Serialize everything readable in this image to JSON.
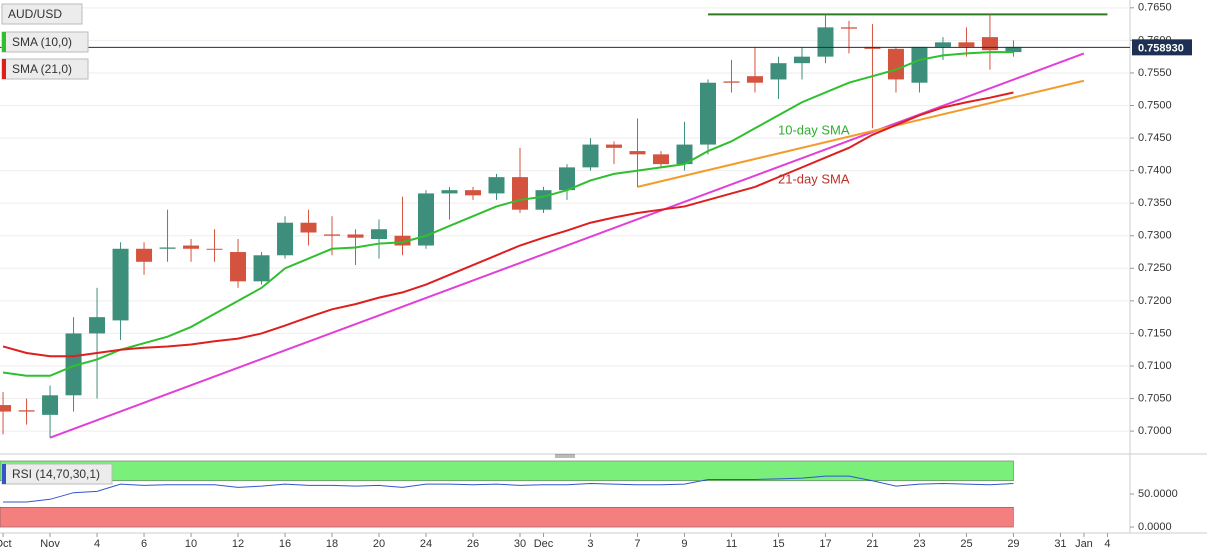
{
  "chart_data": [
    {
      "type": "candlestick",
      "title": "AUD/USD",
      "up_color": "#3d8f7c",
      "down_color": "#d4533f",
      "x": [
        0,
        1,
        2,
        3,
        4,
        5,
        6,
        7,
        8,
        9,
        10,
        11,
        12,
        13,
        14,
        15,
        16,
        17,
        18,
        19,
        20,
        21,
        22,
        23,
        24,
        25,
        26,
        27,
        28,
        29,
        30,
        31,
        32,
        33,
        34,
        35,
        36,
        37,
        38,
        39,
        40,
        41,
        42,
        43
      ],
      "open": [
        0.704,
        0.7032,
        0.7025,
        0.7055,
        0.715,
        0.717,
        0.728,
        0.728,
        0.7285,
        0.728,
        0.7275,
        0.723,
        0.727,
        0.732,
        0.7302,
        0.7302,
        0.7295,
        0.73,
        0.7285,
        0.7365,
        0.737,
        0.7365,
        0.739,
        0.734,
        0.737,
        0.7405,
        0.744,
        0.743,
        0.7425,
        0.741,
        0.744,
        0.7537,
        0.7545,
        0.754,
        0.7565,
        0.7575,
        0.762,
        0.759,
        0.7587,
        0.7535,
        0.759,
        0.7597,
        0.7605,
        0.7582
      ],
      "high": [
        0.706,
        0.705,
        0.707,
        0.7175,
        0.722,
        0.729,
        0.729,
        0.734,
        0.7295,
        0.731,
        0.7295,
        0.7275,
        0.733,
        0.734,
        0.733,
        0.731,
        0.7325,
        0.736,
        0.737,
        0.7375,
        0.7375,
        0.7395,
        0.7435,
        0.7375,
        0.741,
        0.745,
        0.7445,
        0.748,
        0.743,
        0.7475,
        0.754,
        0.757,
        0.759,
        0.7575,
        0.759,
        0.764,
        0.763,
        0.7625,
        0.759,
        0.759,
        0.7605,
        0.762,
        0.764,
        0.76
      ],
      "low": [
        0.6995,
        0.701,
        0.699,
        0.703,
        0.705,
        0.714,
        0.724,
        0.726,
        0.726,
        0.726,
        0.722,
        0.7225,
        0.7265,
        0.7285,
        0.727,
        0.7255,
        0.7265,
        0.727,
        0.728,
        0.7325,
        0.7355,
        0.7355,
        0.7335,
        0.7335,
        0.7355,
        0.74,
        0.741,
        0.7375,
        0.7405,
        0.74,
        0.7425,
        0.752,
        0.752,
        0.751,
        0.754,
        0.7565,
        0.758,
        0.7465,
        0.752,
        0.752,
        0.757,
        0.7575,
        0.7555,
        0.7575
      ],
      "close": [
        0.703,
        0.703,
        0.7055,
        0.715,
        0.7175,
        0.728,
        0.726,
        0.7282,
        0.728,
        0.7279,
        0.723,
        0.727,
        0.732,
        0.7305,
        0.73,
        0.7297,
        0.731,
        0.7285,
        0.7365,
        0.737,
        0.7362,
        0.739,
        0.734,
        0.737,
        0.7405,
        0.744,
        0.7435,
        0.7425,
        0.741,
        0.744,
        0.7535,
        0.7535,
        0.7535,
        0.7565,
        0.7575,
        0.762,
        0.7618,
        0.7587,
        0.754,
        0.759,
        0.7597,
        0.759,
        0.7585,
        0.759
      ],
      "series": [
        {
          "name": "SMA (10,0)",
          "color": "#2fbf2f",
          "values": [
            0.709,
            0.7085,
            0.7085,
            0.71,
            0.711,
            0.7125,
            0.7135,
            0.7145,
            0.716,
            0.718,
            0.72,
            0.722,
            0.725,
            0.7265,
            0.728,
            0.7282,
            0.7288,
            0.729,
            0.73,
            0.7315,
            0.733,
            0.7345,
            0.7355,
            0.736,
            0.737,
            0.7385,
            0.7395,
            0.74,
            0.7405,
            0.741,
            0.743,
            0.7445,
            0.7465,
            0.7485,
            0.7505,
            0.752,
            0.7535,
            0.7545,
            0.7555,
            0.757,
            0.7577,
            0.758,
            0.7582,
            0.7582
          ]
        },
        {
          "name": "SMA (21,0)",
          "color": "#dd1f1f",
          "values": [
            0.713,
            0.712,
            0.7115,
            0.7115,
            0.712,
            0.7125,
            0.7128,
            0.713,
            0.7133,
            0.7138,
            0.7142,
            0.715,
            0.7162,
            0.7175,
            0.7187,
            0.7195,
            0.7205,
            0.7213,
            0.7225,
            0.724,
            0.7255,
            0.727,
            0.7285,
            0.7297,
            0.7308,
            0.732,
            0.7328,
            0.7335,
            0.734,
            0.7345,
            0.7355,
            0.7365,
            0.7375,
            0.739,
            0.7405,
            0.742,
            0.7435,
            0.7455,
            0.747,
            0.7485,
            0.7497,
            0.7505,
            0.7512,
            0.752
          ]
        }
      ],
      "trend_lines": [
        {
          "color": "#2e7d1e",
          "x": [
            30,
            47
          ],
          "y": [
            0.764,
            0.764
          ]
        },
        {
          "color": "#e23fd6",
          "x": [
            2,
            46
          ],
          "y": [
            0.699,
            0.758
          ]
        },
        {
          "color": "#f39c2c",
          "x": [
            27,
            46
          ],
          "y": [
            0.7375,
            0.7538
          ]
        }
      ],
      "annotations": [
        {
          "text": "10-day SMA",
          "color": "#2fae2f"
        },
        {
          "text": "21-day SMA",
          "color": "#b8322a"
        }
      ],
      "last_price": {
        "value": 0.75893,
        "label": "0.758930"
      },
      "xlim": [
        -0.13,
        47.96
      ],
      "ylim": [
        0.6971,
        0.7662
      ],
      "yticks": [
        {
          "value": 0.765,
          "label": "0.7650"
        },
        {
          "value": 0.76,
          "label": "0.7600"
        },
        {
          "value": 0.755,
          "label": "0.7550"
        },
        {
          "value": 0.75,
          "label": "0.7500"
        },
        {
          "value": 0.745,
          "label": "0.7450"
        },
        {
          "value": 0.74,
          "label": "0.7400"
        },
        {
          "value": 0.735,
          "label": "0.7350"
        },
        {
          "value": 0.73,
          "label": "0.7300"
        },
        {
          "value": 0.725,
          "label": "0.7250"
        },
        {
          "value": 0.72,
          "label": "0.7200"
        },
        {
          "value": 0.715,
          "label": "0.7150"
        },
        {
          "value": 0.71,
          "label": "0.7100"
        },
        {
          "value": 0.705,
          "label": "0.7050"
        },
        {
          "value": 0.7,
          "label": "0.7000"
        }
      ],
      "grid": true
    },
    {
      "type": "line",
      "x": [
        0,
        1,
        2,
        3,
        4,
        5,
        6,
        7,
        8,
        9,
        10,
        11,
        12,
        13,
        14,
        15,
        16,
        17,
        18,
        19,
        20,
        21,
        22,
        23,
        24,
        25,
        26,
        27,
        28,
        29,
        30,
        31,
        32,
        33,
        34,
        35,
        36,
        37,
        38,
        39,
        40,
        41,
        42,
        43
      ],
      "series": [
        {
          "name": "RSI (14,70,30,1)",
          "color": "#3355cc",
          "values": [
            38,
            38,
            42,
            52,
            54,
            65,
            63,
            64,
            64,
            64,
            60,
            62,
            65,
            63,
            63,
            62,
            63,
            60,
            65,
            65,
            64,
            65,
            63,
            64,
            64,
            66,
            65,
            64,
            64,
            65,
            72,
            72,
            72,
            73,
            74,
            77,
            77,
            70,
            62,
            65,
            66,
            65,
            64,
            66
          ]
        }
      ],
      "bands": [
        {
          "from": 70,
          "to": 100,
          "color": "#7af07a"
        },
        {
          "from": 0,
          "to": 30,
          "color": "#f47f7f"
        }
      ],
      "xlim": [
        -0.13,
        47.96
      ],
      "ylim": [
        -9,
        104.5
      ],
      "yticks": [
        {
          "value": 50,
          "label": "50.0000"
        },
        {
          "value": 0,
          "label": "0.0000"
        }
      ],
      "xticks": [
        {
          "value": 0,
          "label": "Oct"
        },
        {
          "value": 2,
          "label": "Nov"
        },
        {
          "value": 4,
          "label": "4"
        },
        {
          "value": 6,
          "label": "6"
        },
        {
          "value": 8,
          "label": "10"
        },
        {
          "value": 10,
          "label": "12"
        },
        {
          "value": 12,
          "label": "16"
        },
        {
          "value": 14,
          "label": "18"
        },
        {
          "value": 16,
          "label": "20"
        },
        {
          "value": 18,
          "label": "24"
        },
        {
          "value": 20,
          "label": "26"
        },
        {
          "value": 22,
          "label": "30"
        },
        {
          "value": 23,
          "label": "Dec"
        },
        {
          "value": 25,
          "label": "3"
        },
        {
          "value": 27,
          "label": "7"
        },
        {
          "value": 29,
          "label": "9"
        },
        {
          "value": 31,
          "label": "11"
        },
        {
          "value": 33,
          "label": "15"
        },
        {
          "value": 35,
          "label": "17"
        },
        {
          "value": 37,
          "label": "21"
        },
        {
          "value": 39,
          "label": "23"
        },
        {
          "value": 41,
          "label": "25"
        },
        {
          "value": 43,
          "label": "29"
        },
        {
          "value": 45,
          "label": "31"
        },
        {
          "value": 46,
          "label": "Jan"
        },
        {
          "value": 47,
          "label": "4"
        }
      ]
    }
  ]
}
